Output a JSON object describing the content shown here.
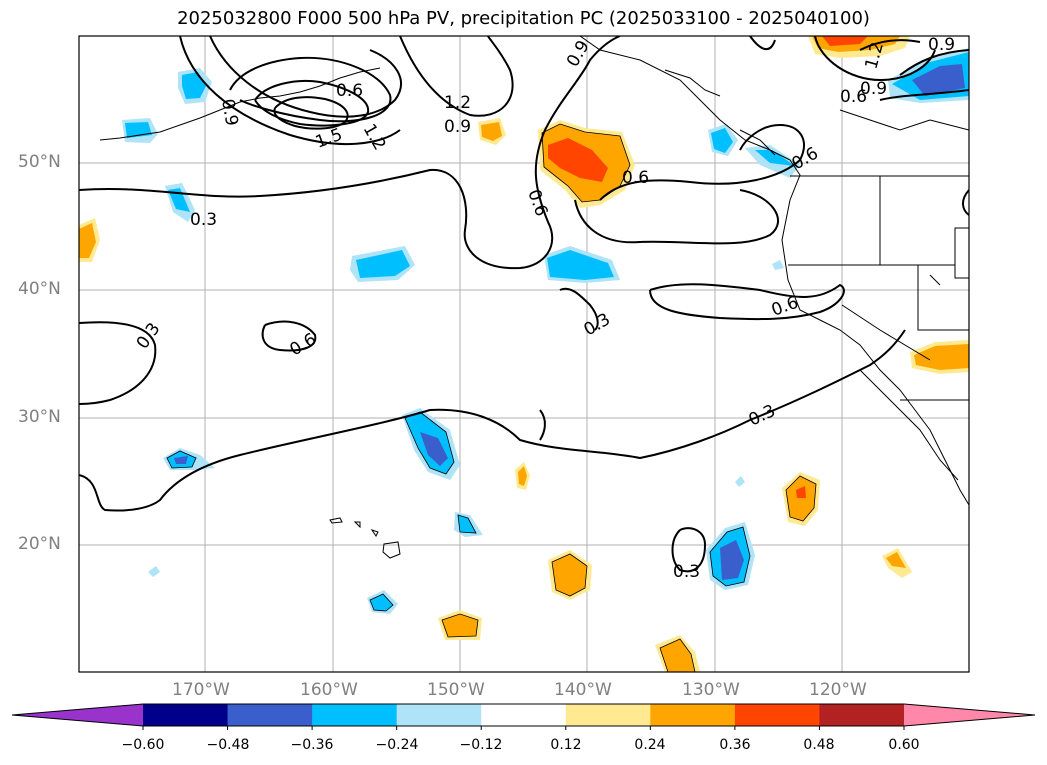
{
  "title": "2025032800 F000 500 hPa PV, precipitation PC (2025033100 - 2025040100)",
  "lat_labels": [
    "50°N",
    "40°N",
    "30°N",
    "20°N"
  ],
  "lon_labels": [
    "170°W",
    "160°W",
    "150°W",
    "140°W",
    "130°W",
    "120°W"
  ],
  "contour_labels": [
    "0.9",
    "0.6",
    "1.5",
    "1.2",
    "1.2",
    "0.9",
    "0.9",
    "0.6",
    "0.6",
    "0.3",
    "0.3",
    "0.6",
    "0.3",
    "0.6",
    "0.3",
    "0.3",
    "0.6",
    "1.2",
    "0.9",
    "0.6",
    "0.9"
  ],
  "colorbar": {
    "ticks": [
      "−0.60",
      "−0.48",
      "−0.36",
      "−0.24",
      "−0.12",
      "0.12",
      "0.24",
      "0.36",
      "0.48",
      "0.60"
    ],
    "colors": [
      "#9933cc",
      "#00008b",
      "#3a5fcd",
      "#00bfff",
      "#aee3f8",
      "#ffffff",
      "#ffe991",
      "#ffa500",
      "#ff4500",
      "#b22222",
      "#ff88aa"
    ]
  }
}
